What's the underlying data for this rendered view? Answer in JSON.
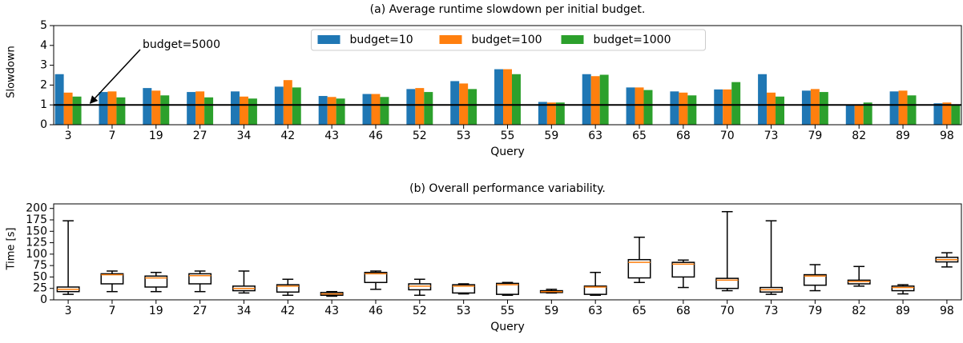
{
  "chart_data": [
    {
      "type": "bar",
      "title": "(a) Average runtime slowdown per initial budget.",
      "x_label": "Query",
      "y_label": "Slowdown",
      "categories": [
        "3",
        "7",
        "19",
        "27",
        "34",
        "42",
        "43",
        "46",
        "52",
        "53",
        "55",
        "59",
        "63",
        "65",
        "68",
        "70",
        "73",
        "79",
        "82",
        "89",
        "98"
      ],
      "series": [
        {
          "name": "budget=10",
          "color": "#1f77b4",
          "values": [
            2.55,
            1.65,
            1.85,
            1.65,
            1.68,
            1.92,
            1.45,
            1.55,
            1.8,
            2.2,
            2.8,
            1.15,
            2.55,
            1.88,
            1.68,
            1.78,
            2.55,
            1.72,
            1.0,
            1.68,
            1.08
          ]
        },
        {
          "name": "budget=100",
          "color": "#ff7f0e",
          "values": [
            1.62,
            1.68,
            1.72,
            1.68,
            1.42,
            2.25,
            1.4,
            1.55,
            1.85,
            2.08,
            2.8,
            1.12,
            2.45,
            1.88,
            1.62,
            1.78,
            1.62,
            1.8,
            1.0,
            1.72,
            1.12
          ]
        },
        {
          "name": "budget=1000",
          "color": "#2ca02c",
          "values": [
            1.42,
            1.38,
            1.48,
            1.38,
            1.32,
            1.88,
            1.32,
            1.4,
            1.65,
            1.8,
            2.55,
            1.12,
            2.52,
            1.75,
            1.48,
            2.15,
            1.42,
            1.65,
            1.12,
            1.48,
            1.0
          ]
        }
      ],
      "hline": 1,
      "annotation": "budget=5000",
      "ylim": [
        0,
        5
      ],
      "yticks": [
        0,
        1,
        2,
        3,
        4,
        5
      ],
      "legend": "upper center"
    },
    {
      "type": "box",
      "title": "(b) Overall performance variability.",
      "x_label": "Query",
      "y_label": "Time [s]",
      "categories": [
        "3",
        "7",
        "19",
        "27",
        "34",
        "42",
        "43",
        "46",
        "52",
        "53",
        "55",
        "59",
        "63",
        "65",
        "68",
        "70",
        "73",
        "79",
        "82",
        "89",
        "98"
      ],
      "color": "#000000",
      "median_color": "#ff7f0e",
      "whislo": [
        12,
        18,
        18,
        18,
        15,
        10,
        8,
        23,
        10,
        13,
        10,
        15,
        10,
        38,
        27,
        20,
        12,
        20,
        30,
        13,
        72
      ],
      "q1": [
        18,
        35,
        28,
        35,
        20,
        17,
        10,
        38,
        22,
        15,
        12,
        16,
        12,
        48,
        50,
        25,
        17,
        32,
        35,
        20,
        83
      ],
      "med": [
        23,
        55,
        48,
        53,
        25,
        30,
        13,
        57,
        30,
        30,
        33,
        18,
        28,
        82,
        78,
        43,
        22,
        52,
        40,
        27,
        88
      ],
      "q3": [
        28,
        57,
        52,
        57,
        30,
        33,
        16,
        60,
        35,
        33,
        36,
        20,
        30,
        88,
        82,
        47,
        27,
        55,
        43,
        30,
        93
      ],
      "whishi": [
        173,
        63,
        60,
        63,
        63,
        45,
        18,
        63,
        45,
        35,
        38,
        23,
        60,
        137,
        87,
        193,
        173,
        77,
        73,
        33,
        103
      ],
      "ylim": [
        0,
        210
      ],
      "yticks": [
        0,
        25,
        50,
        75,
        100,
        125,
        150,
        175,
        200
      ]
    }
  ]
}
